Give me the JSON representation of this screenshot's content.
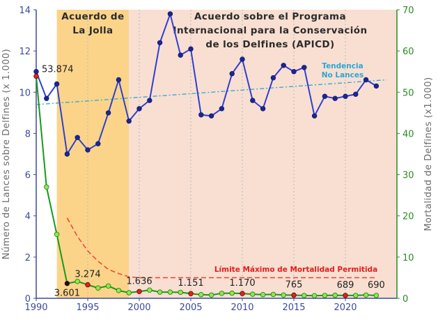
{
  "chart_data": {
    "type": "line",
    "x_axis": {
      "min": 1990,
      "max": 2025,
      "ticks": [
        1990,
        1995,
        2000,
        2005,
        2010,
        2015,
        2020
      ]
    },
    "y_left": {
      "label": "Número de Lances sobre Delfines (x 1.000)",
      "min": 0,
      "max": 14,
      "ticks": [
        0,
        2,
        4,
        6,
        8,
        10,
        12,
        14
      ]
    },
    "y_right": {
      "label": "Mortalidad de Delfines (x1.000)",
      "min": 0,
      "max": 70,
      "ticks": [
        0,
        10,
        20,
        30,
        40,
        50,
        60,
        70
      ]
    },
    "grid": "vertical dotted",
    "regions": [
      {
        "id": "la-jolla",
        "x_start": 1992,
        "x_end": 1999,
        "color": "#fbd48a",
        "title_lines": [
          "Acuerdo de",
          "La Jolla"
        ]
      },
      {
        "id": "apicd",
        "x_start": 1999,
        "x_end": 2025,
        "color": "#f8dfd2",
        "title_lines": [
          "Acuerdo sobre el Programa",
          "Internacional para la Conservación",
          "de los Delfines (APICD)"
        ]
      }
    ],
    "series": [
      {
        "name": "Lances",
        "axis": "left",
        "color": "#2f3fcf",
        "marker": "#1c2690",
        "x": [
          1990,
          1991,
          1992,
          1993,
          1994,
          1995,
          1996,
          1997,
          1998,
          1999,
          2000,
          2001,
          2002,
          2003,
          2004,
          2005,
          2006,
          2007,
          2008,
          2009,
          2010,
          2011,
          2012,
          2013,
          2014,
          2015,
          2016,
          2017,
          2018,
          2019,
          2020,
          2021,
          2022,
          2023
        ],
        "y": [
          11.0,
          9.7,
          10.4,
          7.0,
          7.8,
          7.2,
          7.5,
          9.0,
          10.6,
          8.6,
          9.2,
          9.6,
          12.4,
          13.8,
          11.8,
          12.1,
          8.9,
          8.85,
          9.2,
          10.9,
          11.6,
          9.6,
          9.2,
          10.7,
          11.3,
          11.0,
          11.2,
          8.85,
          9.8,
          9.7,
          9.8,
          9.9,
          10.6,
          10.3
        ]
      },
      {
        "name": "Mortalidad",
        "axis": "right",
        "color": "#169a16",
        "marker": "#8fe84a",
        "x": [
          1990,
          1991,
          1992,
          1993,
          1994,
          1995,
          1996,
          1997,
          1998,
          1999,
          2000,
          2001,
          2002,
          2003,
          2004,
          2005,
          2006,
          2007,
          2008,
          2009,
          2010,
          2011,
          2012,
          2013,
          2014,
          2015,
          2016,
          2017,
          2018,
          2019,
          2020,
          2021,
          2022,
          2023
        ],
        "y": [
          53.874,
          27.0,
          15.5,
          3.601,
          4.1,
          3.274,
          2.5,
          3.0,
          1.9,
          1.35,
          1.636,
          2.0,
          1.5,
          1.5,
          1.45,
          1.151,
          0.9,
          0.8,
          1.2,
          1.25,
          1.17,
          1.0,
          0.9,
          0.95,
          0.8,
          0.765,
          0.7,
          0.65,
          0.7,
          0.75,
          0.689,
          0.7,
          0.8,
          0.69
        ],
        "highlight_points": [
          1990,
          1993,
          1995,
          2000,
          2005,
          2010,
          2015,
          2020
        ]
      }
    ],
    "trend_line": {
      "axis": "left",
      "color": "#2aa7d6",
      "x": [
        1990,
        2024
      ],
      "y": [
        9.4,
        10.6
      ],
      "label_lines": [
        "Tendencia",
        "No Lances"
      ]
    },
    "limit_line": {
      "axis": "right",
      "color": "#f04a3c",
      "x": [
        1993,
        1994,
        1995,
        1996,
        1997,
        1998,
        1999,
        2000,
        2023
      ],
      "y": [
        19.5,
        15.0,
        11.5,
        9.0,
        7.0,
        6.0,
        5.2,
        5.0,
        5.0
      ],
      "label": "Límite Máximo de Mortalidad Permitida"
    },
    "annotations": [
      {
        "text": "53.874",
        "x": 1990,
        "y": 53.874,
        "axis": "right",
        "position": "right"
      },
      {
        "text": "3.601",
        "x": 1993,
        "y": 3.601,
        "axis": "right",
        "position": "below"
      },
      {
        "text": "3.274",
        "x": 1995,
        "y": 3.274,
        "axis": "right",
        "position": "above"
      },
      {
        "text": "1.636",
        "x": 2000,
        "y": 1.636,
        "axis": "right",
        "position": "above"
      },
      {
        "text": "1.151",
        "x": 2005,
        "y": 1.151,
        "axis": "right",
        "position": "above"
      },
      {
        "text": "1.170",
        "x": 2010,
        "y": 1.17,
        "axis": "right",
        "position": "above"
      },
      {
        "text": "765",
        "x": 2015,
        "y": 0.765,
        "axis": "right",
        "position": "above"
      },
      {
        "text": "689",
        "x": 2020,
        "y": 0.689,
        "axis": "right",
        "position": "above"
      },
      {
        "text": "690",
        "x": 2023,
        "y": 0.69,
        "axis": "right",
        "position": "above"
      }
    ]
  }
}
